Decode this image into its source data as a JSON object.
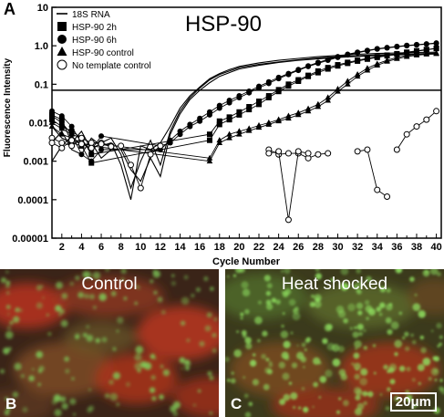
{
  "figure": {
    "panel_a": "A",
    "panel_b": "B",
    "panel_c": "C"
  },
  "chart_data": {
    "type": "line",
    "title": "HSP-90",
    "xlabel": "Cycle Number",
    "ylabel": "Fluorescence Intensity",
    "x_scale": "linear",
    "y_scale": "log",
    "xlim": [
      1,
      40.5
    ],
    "ylim": [
      1e-05,
      10
    ],
    "x_ticks": [
      "2",
      "4",
      "6",
      "8",
      "10",
      "12",
      "14",
      "16",
      "18",
      "20",
      "22",
      "24",
      "26",
      "28",
      "30",
      "32",
      "34",
      "36",
      "38",
      "40"
    ],
    "y_ticks": [
      {
        "value": 10,
        "label": "10"
      },
      {
        "value": 1,
        "label": "1.0"
      },
      {
        "value": 0.1,
        "label": "0.1"
      },
      {
        "value": 0.01,
        "label": "0.01"
      },
      {
        "value": 0.001,
        "label": "0.001"
      },
      {
        "value": 0.0001,
        "label": "0.0001"
      },
      {
        "value": 1e-05,
        "label": "0.00001"
      }
    ],
    "threshold": 0.07,
    "legend_position": "top-left",
    "series": [
      {
        "name": "18S RNA",
        "marker": "none",
        "replicates": [
          {
            "x": [
              1,
              2,
              3,
              4,
              5,
              6,
              7,
              8,
              9,
              10,
              11,
              12,
              13,
              14,
              15,
              16,
              17,
              18,
              19,
              20,
              22,
              24,
              26,
              28,
              30,
              32,
              34,
              36,
              38,
              40
            ],
            "y": [
              0.008,
              0.004,
              0.003,
              0.006,
              0.002,
              0.003,
              0.004,
              0.0015,
              0.0002,
              0.001,
              0.0035,
              0.0008,
              0.006,
              0.02,
              0.045,
              0.08,
              0.13,
              0.18,
              0.22,
              0.27,
              0.33,
              0.38,
              0.43,
              0.48,
              0.52,
              0.55,
              0.58,
              0.6,
              0.62,
              0.63
            ]
          },
          {
            "x": [
              1,
              2,
              3,
              4,
              5,
              6,
              7,
              8,
              9,
              10,
              11,
              12,
              13,
              14,
              15,
              16,
              17,
              18,
              19,
              20,
              22,
              24,
              26,
              28,
              30,
              32,
              34,
              36,
              38,
              40
            ],
            "y": [
              0.003,
              0.006,
              0.002,
              0.0015,
              0.004,
              0.0025,
              0.003,
              0.0008,
              0.0001,
              0.0025,
              0.002,
              0.003,
              0.008,
              0.024,
              0.05,
              0.085,
              0.14,
              0.19,
              0.24,
              0.29,
              0.36,
              0.42,
              0.47,
              0.52,
              0.56,
              0.6,
              0.63,
              0.65,
              0.67,
              0.68
            ]
          },
          {
            "x": [
              1,
              2,
              3,
              4,
              5,
              6,
              7,
              8,
              9,
              10,
              11,
              12,
              13,
              14,
              15,
              16,
              17,
              18,
              19,
              20,
              22,
              24,
              26,
              28,
              30,
              32,
              34,
              36,
              38,
              40
            ],
            "y": [
              0.001,
              0.0025,
              0.0045,
              0.0025,
              0.003,
              0.0012,
              0.002,
              0.002,
              0.0006,
              0.0003,
              0.0012,
              0.0004,
              0.005,
              0.017,
              0.04,
              0.07,
              0.11,
              0.16,
              0.2,
              0.25,
              0.31,
              0.37,
              0.42,
              0.46,
              0.5,
              0.53,
              0.56,
              0.58,
              0.6,
              0.61
            ]
          }
        ]
      },
      {
        "name": "HSP-90 2h",
        "marker": "square",
        "replicates": [
          {
            "x": [
              1,
              2,
              3,
              4,
              5,
              17,
              18,
              19,
              20,
              21,
              22,
              23,
              24,
              25,
              26,
              27,
              28,
              29,
              30,
              31,
              32,
              33,
              34,
              35,
              36,
              37,
              38,
              39,
              40
            ],
            "y": [
              0.016,
              0.012,
              0.003,
              0.0025,
              0.0009,
              0.0035,
              0.009,
              0.012,
              0.016,
              0.022,
              0.03,
              0.045,
              0.065,
              0.09,
              0.12,
              0.16,
              0.2,
              0.25,
              0.3,
              0.35,
              0.4,
              0.45,
              0.5,
              0.55,
              0.6,
              0.66,
              0.72,
              0.78,
              0.85
            ]
          },
          {
            "x": [
              1,
              2,
              3,
              4,
              5,
              17,
              18,
              19,
              20,
              21,
              22,
              23,
              24,
              25,
              26,
              27,
              28,
              29,
              30,
              31,
              32,
              33,
              34,
              35,
              36,
              37,
              38,
              39,
              40
            ],
            "y": [
              0.012,
              0.008,
              0.006,
              0.004,
              0.0015,
              0.005,
              0.011,
              0.014,
              0.019,
              0.026,
              0.036,
              0.05,
              0.072,
              0.1,
              0.13,
              0.17,
              0.22,
              0.27,
              0.32,
              0.37,
              0.42,
              0.47,
              0.52,
              0.57,
              0.62,
              0.68,
              0.74,
              0.8,
              0.86
            ]
          }
        ]
      },
      {
        "name": "HSP-90 6h",
        "marker": "circle",
        "replicates": [
          {
            "x": [
              1,
              2,
              3,
              4,
              5,
              6,
              12,
              13,
              14,
              15,
              16,
              17,
              18,
              19,
              20,
              21,
              22,
              23,
              24,
              25,
              26,
              27,
              28,
              29,
              30,
              31,
              32,
              33,
              34,
              35,
              36,
              37,
              38,
              39,
              40
            ],
            "y": [
              0.02,
              0.015,
              0.008,
              0.003,
              0.002,
              0.0045,
              0.0025,
              0.003,
              0.005,
              0.008,
              0.011,
              0.016,
              0.024,
              0.033,
              0.045,
              0.06,
              0.08,
              0.105,
              0.14,
              0.18,
              0.23,
              0.29,
              0.35,
              0.42,
              0.5,
              0.58,
              0.66,
              0.74,
              0.82,
              0.88,
              0.94,
              1.0,
              1.05,
              1.1,
              1.15
            ]
          },
          {
            "x": [
              1,
              2,
              3,
              4,
              5,
              6,
              12,
              13,
              14,
              15,
              16,
              17,
              18,
              19,
              20,
              21,
              22,
              23,
              24,
              25,
              26,
              27,
              28,
              29,
              30,
              31,
              32,
              33,
              34,
              35,
              36,
              37,
              38,
              39,
              40
            ],
            "y": [
              0.015,
              0.01,
              0.005,
              0.0015,
              0.001,
              0.002,
              0.002,
              0.0035,
              0.006,
              0.009,
              0.013,
              0.019,
              0.028,
              0.038,
              0.05,
              0.066,
              0.088,
              0.115,
              0.15,
              0.19,
              0.24,
              0.3,
              0.37,
              0.44,
              0.52,
              0.6,
              0.68,
              0.76,
              0.84,
              0.9,
              0.96,
              1.02,
              1.07,
              1.12,
              1.18
            ]
          }
        ]
      },
      {
        "name": "HSP-90 control",
        "marker": "triangle",
        "replicates": [
          {
            "x": [
              1,
              2,
              3,
              4,
              5,
              17,
              18,
              19,
              20,
              21,
              22,
              23,
              24,
              25,
              26,
              27,
              28,
              29,
              30,
              31,
              32,
              33,
              34,
              35,
              36,
              37,
              38,
              39,
              40
            ],
            "y": [
              0.01,
              0.007,
              0.005,
              0.004,
              0.003,
              0.0012,
              0.0035,
              0.005,
              0.006,
              0.007,
              0.0085,
              0.01,
              0.012,
              0.015,
              0.018,
              0.023,
              0.03,
              0.045,
              0.075,
              0.12,
              0.18,
              0.26,
              0.34,
              0.42,
              0.5,
              0.56,
              0.6,
              0.63,
              0.65
            ]
          },
          {
            "x": [
              1,
              2,
              3,
              4,
              5,
              17,
              18,
              19,
              20,
              21,
              22,
              23,
              24,
              25,
              26,
              27,
              28,
              29,
              30,
              31,
              32,
              33,
              34,
              35,
              36,
              37,
              38,
              39,
              40
            ],
            "y": [
              0.008,
              0.005,
              0.004,
              0.003,
              0.0025,
              0.001,
              0.003,
              0.004,
              0.005,
              0.0062,
              0.0075,
              0.009,
              0.011,
              0.013,
              0.016,
              0.02,
              0.026,
              0.038,
              0.065,
              0.1,
              0.16,
              0.23,
              0.31,
              0.39,
              0.46,
              0.52,
              0.57,
              0.6,
              0.62
            ]
          }
        ]
      },
      {
        "name": "No template control",
        "marker": "open-circle",
        "replicates": [
          {
            "x": [
              1,
              2,
              3,
              4,
              5,
              6,
              7,
              8,
              9,
              10,
              11,
              12
            ],
            "y": [
              0.004,
              0.003,
              0.0025,
              0.004,
              0.003,
              0.003,
              0.0025,
              0.0025,
              0.0008,
              0.0002,
              0.0015,
              0.0025
            ]
          },
          {
            "x": [
              1,
              2,
              3,
              4,
              5,
              6,
              7
            ],
            "y": [
              0.003,
              0.0022,
              0.0035,
              0.0028,
              0.0022,
              0.0028,
              0.0024
            ]
          },
          {
            "x": [
              23,
              24,
              25,
              26,
              27,
              28,
              29
            ],
            "y": [
              0.002,
              0.0015,
              0.0016,
              0.0016,
              0.0012,
              0.0015,
              0.0016
            ]
          },
          {
            "x": [
              23,
              24,
              25,
              26,
              27
            ],
            "y": [
              0.0016,
              0.0018,
              3e-05,
              0.0018,
              0.0016
            ]
          },
          {
            "x": [
              32,
              33,
              34,
              35
            ],
            "y": [
              0.0018,
              0.002,
              0.00018,
              0.00012
            ]
          },
          {
            "x": [
              36,
              37,
              38,
              39,
              40
            ],
            "y": [
              0.002,
              0.005,
              0.008,
              0.012,
              0.02
            ]
          }
        ]
      }
    ]
  },
  "micrographs": [
    {
      "title": "Control",
      "letter": "B"
    },
    {
      "title": "Heat shocked",
      "letter": "C",
      "scale_bar": "20μm"
    }
  ]
}
